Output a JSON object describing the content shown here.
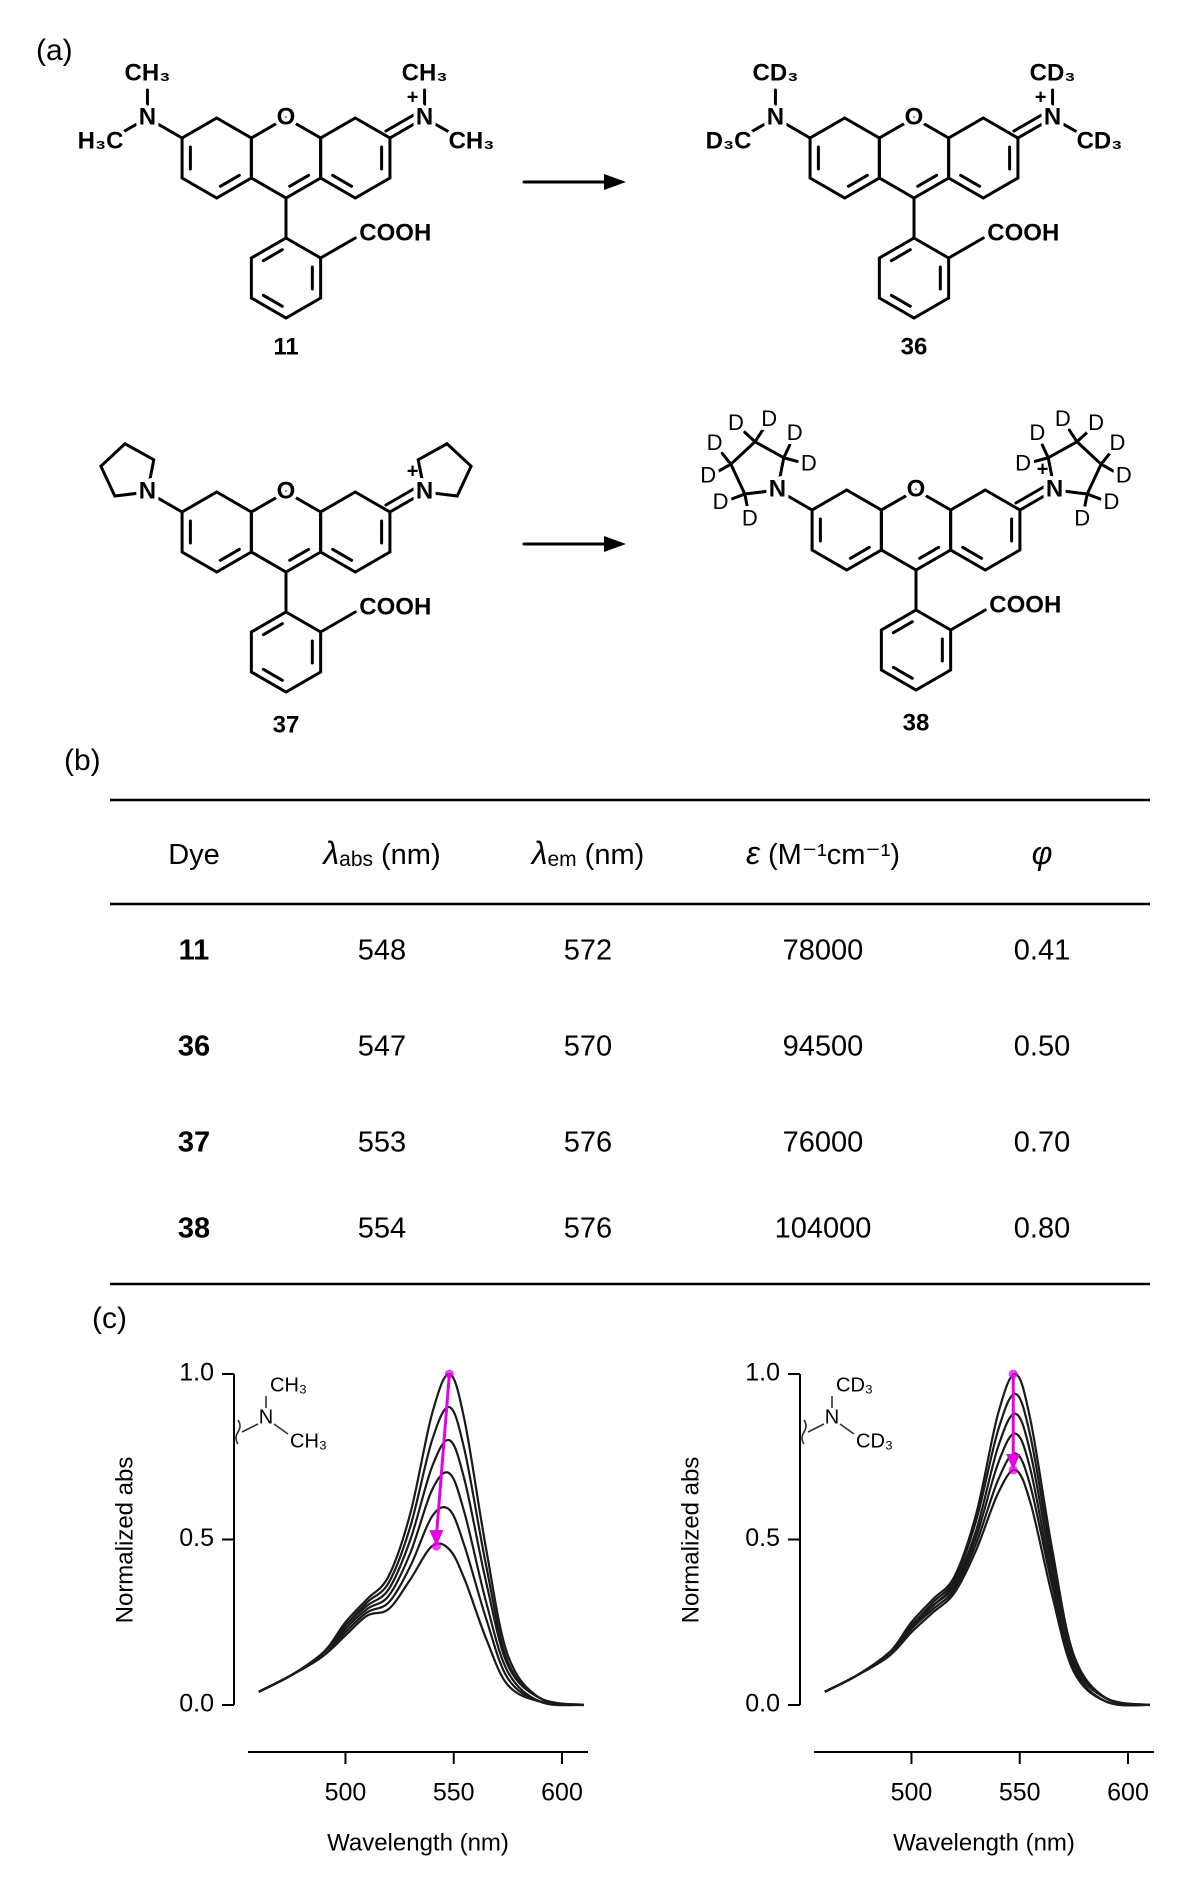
{
  "panel_labels": [
    "(a)",
    "(b)",
    "(c)"
  ],
  "structures": [
    {
      "number": "11",
      "labels": [
        "O",
        "N",
        "N",
        "+",
        "CH₃",
        "H₃C",
        "CH₃",
        "CH₃",
        "COOH"
      ]
    },
    {
      "number": "36",
      "labels": [
        "O",
        "N",
        "N",
        "+",
        "CD₃",
        "D₃C",
        "CD₃",
        "CD₃",
        "COOH"
      ]
    },
    {
      "number": "37",
      "labels": [
        "O",
        "N",
        "N",
        "+",
        "COOH"
      ]
    },
    {
      "number": "38",
      "labels": [
        "O",
        "N",
        "N",
        "+",
        "COOH",
        "D",
        "D",
        "D",
        "D",
        "D",
        "D",
        "D",
        "D",
        "D",
        "D",
        "D",
        "D",
        "D",
        "D",
        "D",
        "D"
      ]
    }
  ],
  "table": {
    "header": [
      {
        "text": "Dye"
      },
      {
        "symbol": "λ",
        "sub": "abs",
        "unit": "(nm)"
      },
      {
        "symbol": "λ",
        "sub": "em",
        "unit": "(nm)"
      },
      {
        "symbol": "ε",
        "unit": "(M⁻¹cm⁻¹)"
      },
      {
        "symbol": "φ"
      }
    ],
    "rows": [
      [
        "11",
        "548",
        "572",
        "78000",
        "0.41"
      ],
      [
        "36",
        "547",
        "570",
        "94500",
        "0.50"
      ],
      [
        "37",
        "553",
        "576",
        "76000",
        "0.70"
      ],
      [
        "38",
        "554",
        "576",
        "104000",
        "0.80"
      ]
    ]
  },
  "chart_data": [
    {
      "type": "line",
      "xlabel": "Wavelength (nm)",
      "ylabel": "Normalized abs",
      "x": [
        460,
        475,
        490,
        500,
        510,
        520,
        530,
        540,
        548,
        555,
        565,
        575,
        590,
        610
      ],
      "xlim": [
        455,
        612
      ],
      "ylim": [
        0,
        1
      ],
      "xticks": [
        500,
        550,
        600
      ],
      "yticks": [
        {
          "value": 0,
          "label": "0.0"
        },
        {
          "value": 0.5,
          "label": "0.5"
        },
        {
          "value": 1,
          "label": "1.0"
        }
      ],
      "series": [
        {
          "color": "#1a1a1a",
          "values": [
            0.04,
            0.09,
            0.16,
            0.25,
            0.32,
            0.39,
            0.58,
            0.88,
            1.0,
            0.86,
            0.47,
            0.15,
            0.02,
            0
          ]
        },
        {
          "color": "#1a1a1a",
          "values": [
            0.04,
            0.09,
            0.16,
            0.24,
            0.31,
            0.37,
            0.54,
            0.8,
            0.9,
            0.77,
            0.42,
            0.13,
            0.02,
            0
          ]
        },
        {
          "color": "#1a1a1a",
          "values": [
            0.04,
            0.09,
            0.16,
            0.24,
            0.3,
            0.35,
            0.5,
            0.72,
            0.8,
            0.68,
            0.37,
            0.12,
            0.02,
            0
          ]
        },
        {
          "color": "#1a1a1a",
          "values": [
            0.04,
            0.09,
            0.15,
            0.23,
            0.29,
            0.33,
            0.46,
            0.65,
            0.7,
            0.58,
            0.31,
            0.1,
            0.01,
            0
          ]
        },
        {
          "color": "#1a1a1a",
          "values": [
            0.04,
            0.09,
            0.15,
            0.22,
            0.28,
            0.31,
            0.42,
            0.57,
            0.59,
            0.48,
            0.26,
            0.08,
            0.01,
            0
          ]
        },
        {
          "color": "#1a1a1a",
          "values": [
            0.04,
            0.09,
            0.15,
            0.21,
            0.27,
            0.29,
            0.38,
            0.48,
            0.47,
            0.38,
            0.2,
            0.06,
            0.01,
            0
          ]
        }
      ],
      "arrow": {
        "color": "#e600e6",
        "x": [
          548,
          542
        ],
        "y": [
          1,
          0.48
        ]
      },
      "inset_labels": [
        "N",
        "CH₃",
        "CH₃"
      ]
    },
    {
      "type": "line",
      "xlabel": "Wavelength (nm)",
      "ylabel": "Normalized abs",
      "x": [
        460,
        475,
        490,
        500,
        510,
        520,
        530,
        540,
        548,
        555,
        565,
        575,
        590,
        610
      ],
      "xlim": [
        455,
        612
      ],
      "ylim": [
        0,
        1
      ],
      "xticks": [
        500,
        550,
        600
      ],
      "yticks": [
        {
          "value": 0,
          "label": "0.0"
        },
        {
          "value": 0.5,
          "label": "0.5"
        },
        {
          "value": 1,
          "label": "1.0"
        }
      ],
      "series": [
        {
          "color": "#1a1a1a",
          "values": [
            0.04,
            0.09,
            0.16,
            0.25,
            0.32,
            0.39,
            0.58,
            0.88,
            1.0,
            0.86,
            0.47,
            0.15,
            0.02,
            0
          ]
        },
        {
          "color": "#1a1a1a",
          "values": [
            0.04,
            0.09,
            0.16,
            0.24,
            0.31,
            0.38,
            0.56,
            0.83,
            0.94,
            0.81,
            0.44,
            0.14,
            0.02,
            0
          ]
        },
        {
          "color": "#1a1a1a",
          "values": [
            0.04,
            0.09,
            0.16,
            0.24,
            0.3,
            0.37,
            0.53,
            0.78,
            0.88,
            0.76,
            0.41,
            0.13,
            0.02,
            0
          ]
        },
        {
          "color": "#1a1a1a",
          "values": [
            0.04,
            0.09,
            0.16,
            0.23,
            0.3,
            0.36,
            0.51,
            0.73,
            0.82,
            0.71,
            0.38,
            0.12,
            0.02,
            0
          ]
        },
        {
          "color": "#1a1a1a",
          "values": [
            0.04,
            0.09,
            0.15,
            0.23,
            0.29,
            0.35,
            0.49,
            0.68,
            0.76,
            0.66,
            0.36,
            0.11,
            0.01,
            0
          ]
        },
        {
          "color": "#1a1a1a",
          "values": [
            0.04,
            0.09,
            0.15,
            0.22,
            0.28,
            0.34,
            0.47,
            0.64,
            0.71,
            0.61,
            0.33,
            0.1,
            0.01,
            0
          ]
        }
      ],
      "arrow": {
        "color": "#e600e6",
        "x": [
          547,
          547
        ],
        "y": [
          1,
          0.71
        ]
      },
      "inset_labels": [
        "N",
        "CD₃",
        "CD₃"
      ]
    }
  ]
}
